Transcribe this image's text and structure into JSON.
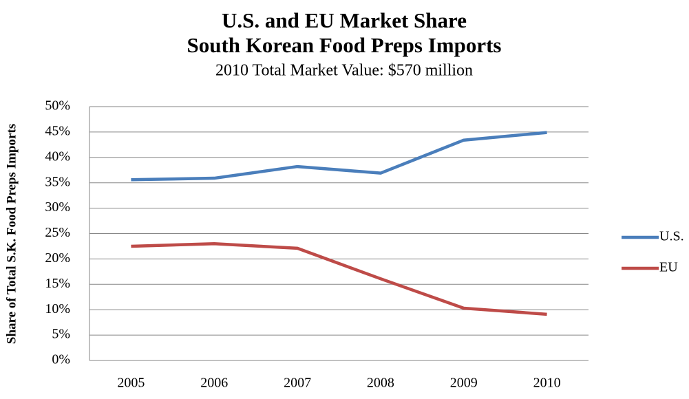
{
  "chart_data": {
    "type": "line",
    "title": [
      "U.S. and EU Market Share",
      "South Korean Food Preps Imports"
    ],
    "subtitle": "2010 Total Market Value: $570 million",
    "y_label": "Share of Total S.K. Food Preps Imports",
    "categories": [
      "2005",
      "2006",
      "2007",
      "2008",
      "2009",
      "2010"
    ],
    "series": [
      {
        "name": "U.S.",
        "color": "#4a7ebb",
        "values": [
          35.6,
          35.9,
          38.2,
          36.9,
          43.4,
          44.9
        ]
      },
      {
        "name": "EU",
        "color": "#be4b48",
        "values": [
          22.5,
          23.0,
          22.1,
          16.1,
          10.3,
          9.1
        ]
      }
    ],
    "ylim": [
      0,
      50
    ],
    "yticks": [
      {
        "value": 0,
        "label": "0%"
      },
      {
        "value": 5,
        "label": "5%"
      },
      {
        "value": 10,
        "label": "10%"
      },
      {
        "value": 15,
        "label": "15%"
      },
      {
        "value": 20,
        "label": "20%"
      },
      {
        "value": 25,
        "label": "25%"
      },
      {
        "value": 30,
        "label": "30%"
      },
      {
        "value": 35,
        "label": "35%"
      },
      {
        "value": 40,
        "label": "40%"
      },
      {
        "value": 45,
        "label": "45%"
      },
      {
        "value": 50,
        "label": "50%"
      }
    ],
    "grid": true,
    "legend": "right"
  }
}
